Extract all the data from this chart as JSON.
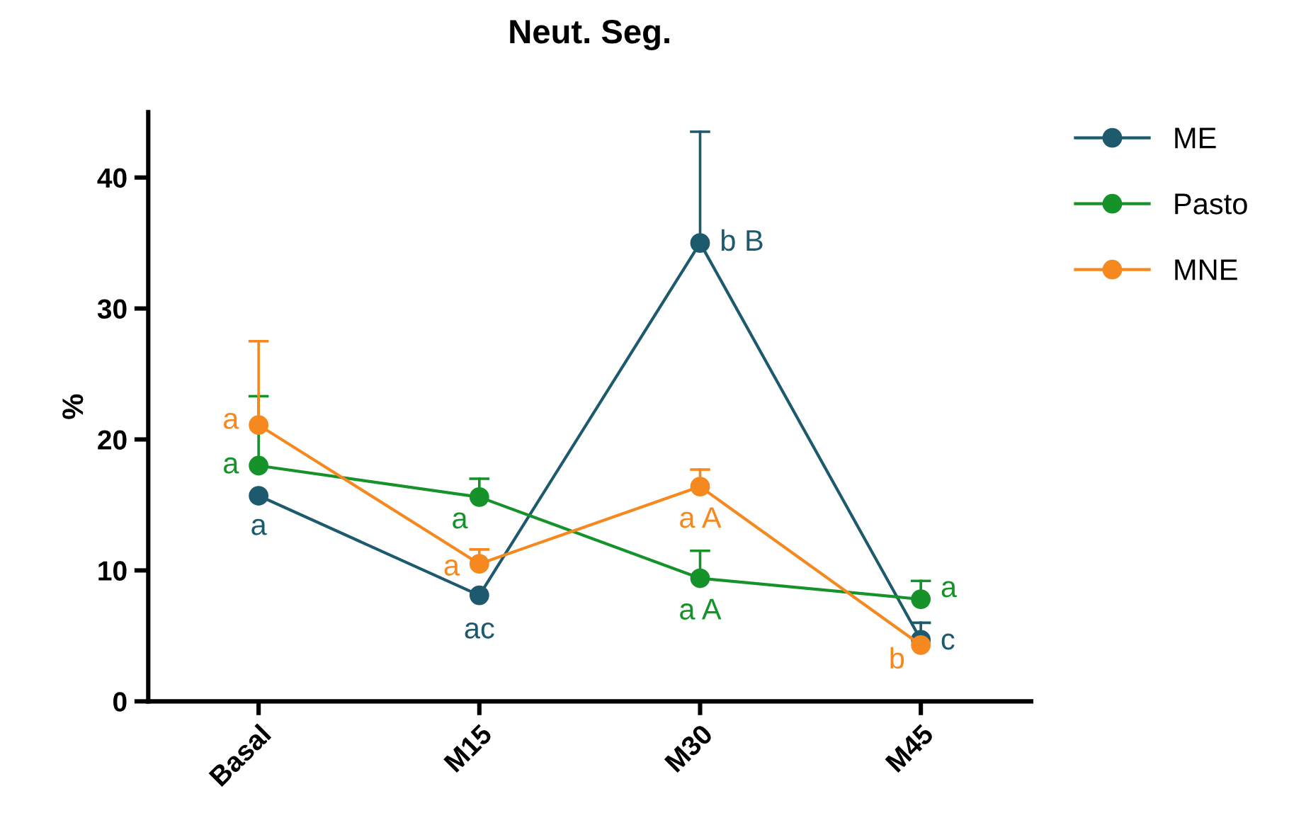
{
  "chart_data": {
    "type": "line",
    "title": "Neut. Seg.",
    "ylabel": "%",
    "categories": [
      "Basal",
      "M15",
      "M30",
      "M45"
    ],
    "series": [
      {
        "name": "ME",
        "color": "#1d5a6e",
        "values": [
          15.7,
          8.1,
          35.0,
          4.7
        ],
        "errors": [
          null,
          null,
          [
            35.0,
            43.5
          ],
          [
            4.7,
            6.0
          ]
        ],
        "value_labels": [
          "a",
          "ac",
          "b B",
          "c"
        ]
      },
      {
        "name": "Pasto",
        "color": "#16922a",
        "values": [
          18.0,
          15.6,
          9.4,
          7.8
        ],
        "errors": [
          [
            18.0,
            23.3
          ],
          [
            15.6,
            17.0
          ],
          [
            9.4,
            11.5
          ],
          [
            7.8,
            9.2
          ]
        ],
        "value_labels": [
          "a",
          "a",
          "a A",
          "a"
        ]
      },
      {
        "name": "MNE",
        "color": "#f5891f",
        "values": [
          21.1,
          10.5,
          16.4,
          4.3
        ],
        "errors": [
          [
            21.1,
            27.5
          ],
          [
            10.5,
            11.6
          ],
          [
            16.4,
            17.7
          ],
          null
        ],
        "value_labels": [
          "a",
          "a",
          "a A",
          "b"
        ]
      }
    ],
    "ylim": [
      0,
      45
    ],
    "yticks": [
      0,
      10,
      20,
      30,
      40
    ],
    "marker": "circle",
    "line_style": "solid",
    "legend": "top right",
    "grid": false
  }
}
